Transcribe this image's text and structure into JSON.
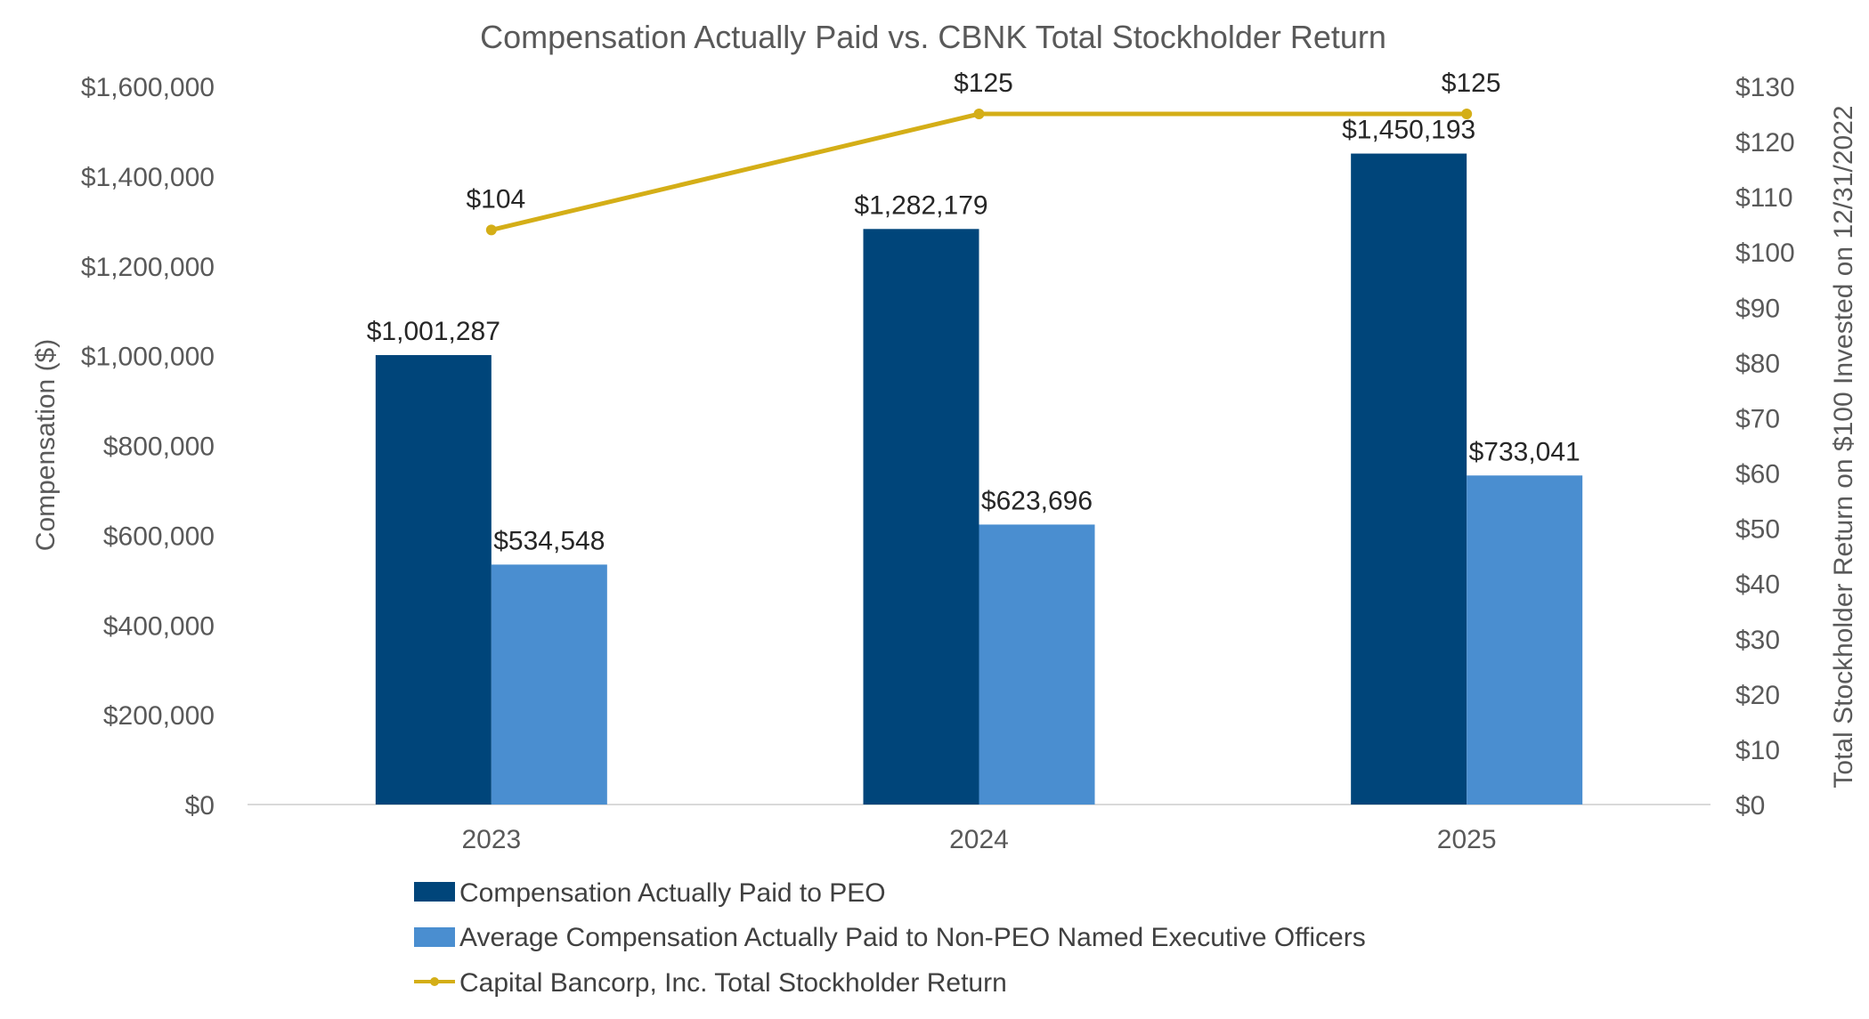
{
  "colors": {
    "peo": "#00457A",
    "non_peo": "#4A8ED0",
    "tsr": "#D4AE17",
    "axis": "#D9D9D9",
    "text": "#595959"
  },
  "chart_data": {
    "type": "bar",
    "title": "Compensation Actually Paid vs. CBNK Total Stockholder Return",
    "categories": [
      "2023",
      "2024",
      "2025"
    ],
    "series": [
      {
        "name": "Compensation Actually Paid to PEO",
        "kind": "bar",
        "axis": "left",
        "values": [
          1001287,
          1282179,
          1450193
        ],
        "labels": [
          "$1,001,287",
          "$1,282,179",
          "$1,450,193"
        ]
      },
      {
        "name": "Average Compensation Actually Paid to Non-PEO Named Executive Officers",
        "kind": "bar",
        "axis": "left",
        "values": [
          534548,
          623696,
          733041
        ],
        "labels": [
          "$534,548",
          "$623,696",
          "$733,041"
        ]
      },
      {
        "name": "Capital Bancorp, Inc. Total Stockholder Return",
        "kind": "line",
        "axis": "right",
        "values": [
          104,
          125,
          125
        ],
        "labels": [
          "$104",
          "$125",
          "$125"
        ]
      }
    ],
    "left_axis": {
      "label": "Compensation ($)",
      "min": 0,
      "max": 1600000,
      "ticks": [
        0,
        200000,
        400000,
        600000,
        800000,
        1000000,
        1200000,
        1400000,
        1600000
      ],
      "tick_labels": [
        "$0",
        "$200,000",
        "$400,000",
        "$600,000",
        "$800,000",
        "$1,000,000",
        "$1,200,000",
        "$1,400,000",
        "$1,600,000"
      ]
    },
    "right_axis": {
      "label": "Total Stockholder Return on $100 Invested on 12/31/2022",
      "min": 0,
      "max": 130,
      "ticks": [
        0,
        10,
        20,
        30,
        40,
        50,
        60,
        70,
        80,
        90,
        100,
        110,
        120,
        130
      ],
      "tick_labels": [
        "$0",
        "$10",
        "$20",
        "$30",
        "$40",
        "$50",
        "$60",
        "$70",
        "$80",
        "$90",
        "$100",
        "$110",
        "$120",
        "$130"
      ]
    },
    "grid": false,
    "legend_position": "bottom"
  }
}
